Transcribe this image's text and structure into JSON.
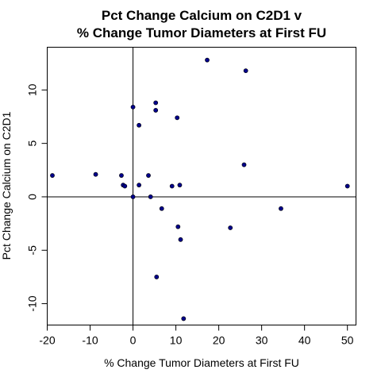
{
  "chart_data": {
    "type": "scatter",
    "title": [
      "Pct Change Calcium on C2D1 v",
      "% Change Tumor Diameters at First FU"
    ],
    "xlabel": "% Change Tumor Diameters at First FU",
    "ylabel": "Pct Change Calcium on C2D1",
    "xlim": [
      -20,
      52
    ],
    "ylim": [
      -12,
      14
    ],
    "x_ticks": [
      -20,
      -10,
      0,
      10,
      20,
      30,
      40,
      50
    ],
    "x_tick_labels": [
      "-20",
      "-10",
      "0",
      "10",
      "20",
      "30",
      "40",
      "50"
    ],
    "y_ticks": [
      -10,
      -5,
      0,
      5,
      10
    ],
    "y_tick_labels": [
      "-10",
      "-5",
      "0",
      "5",
      "10"
    ],
    "reference_lines": {
      "x": 0,
      "y": 0
    },
    "point_color": "#00008B",
    "points": [
      {
        "x": -18.8,
        "y": 2.0
      },
      {
        "x": -8.7,
        "y": 2.1
      },
      {
        "x": -2.7,
        "y": 2.0
      },
      {
        "x": -2.3,
        "y": 1.1
      },
      {
        "x": -1.9,
        "y": 1.0
      },
      {
        "x": 0.0,
        "y": 8.4
      },
      {
        "x": 0.0,
        "y": 0.0
      },
      {
        "x": 1.4,
        "y": 1.1
      },
      {
        "x": 1.4,
        "y": 6.7
      },
      {
        "x": 3.6,
        "y": 2.0
      },
      {
        "x": 4.1,
        "y": 0.0
      },
      {
        "x": 5.3,
        "y": 8.8
      },
      {
        "x": 5.3,
        "y": 8.1
      },
      {
        "x": 5.5,
        "y": -7.5
      },
      {
        "x": 6.7,
        "y": -1.1
      },
      {
        "x": 9.1,
        "y": 1.0
      },
      {
        "x": 10.3,
        "y": 7.4
      },
      {
        "x": 10.5,
        "y": -2.8
      },
      {
        "x": 10.9,
        "y": 1.1
      },
      {
        "x": 11.1,
        "y": -4.0
      },
      {
        "x": 11.8,
        "y": -11.4
      },
      {
        "x": 17.3,
        "y": 12.8
      },
      {
        "x": 22.7,
        "y": -2.9
      },
      {
        "x": 25.9,
        "y": 3.0
      },
      {
        "x": 26.3,
        "y": 11.8
      },
      {
        "x": 34.5,
        "y": -1.1
      },
      {
        "x": 50.0,
        "y": 1.0
      }
    ]
  }
}
